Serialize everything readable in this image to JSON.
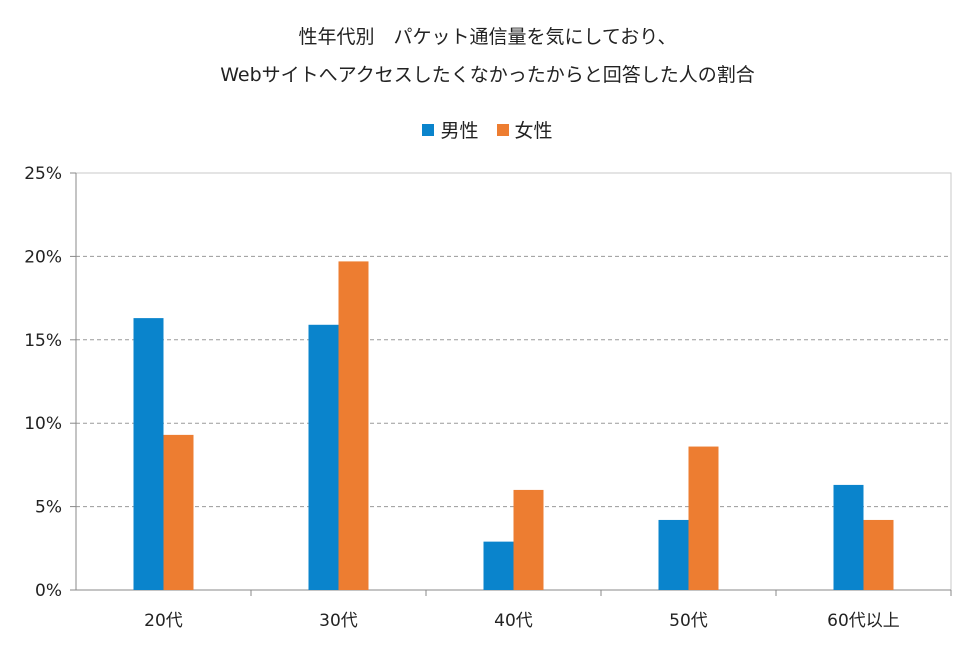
{
  "chart_data": {
    "type": "bar",
    "title_line1": "性年代別　パケット通信量を気にしており、",
    "title_line2": "Webサイトへアクセスしたくなかったからと回答した人の割合",
    "categories": [
      "20代",
      "30代",
      "40代",
      "50代",
      "60代以上"
    ],
    "series": [
      {
        "name": "男性",
        "color": "#0a84cc",
        "values": [
          16.3,
          15.9,
          2.9,
          4.2,
          6.3
        ]
      },
      {
        "name": "女性",
        "color": "#ed7d31",
        "values": [
          9.3,
          19.7,
          6.0,
          8.6,
          4.2
        ]
      }
    ],
    "ylim": [
      0,
      25
    ],
    "yticks": [
      "0%",
      "5%",
      "10%",
      "15%",
      "20%",
      "25%"
    ],
    "ytick_values": [
      0,
      5,
      10,
      15,
      20,
      25
    ],
    "grid": true,
    "legend_position": "top-center"
  }
}
